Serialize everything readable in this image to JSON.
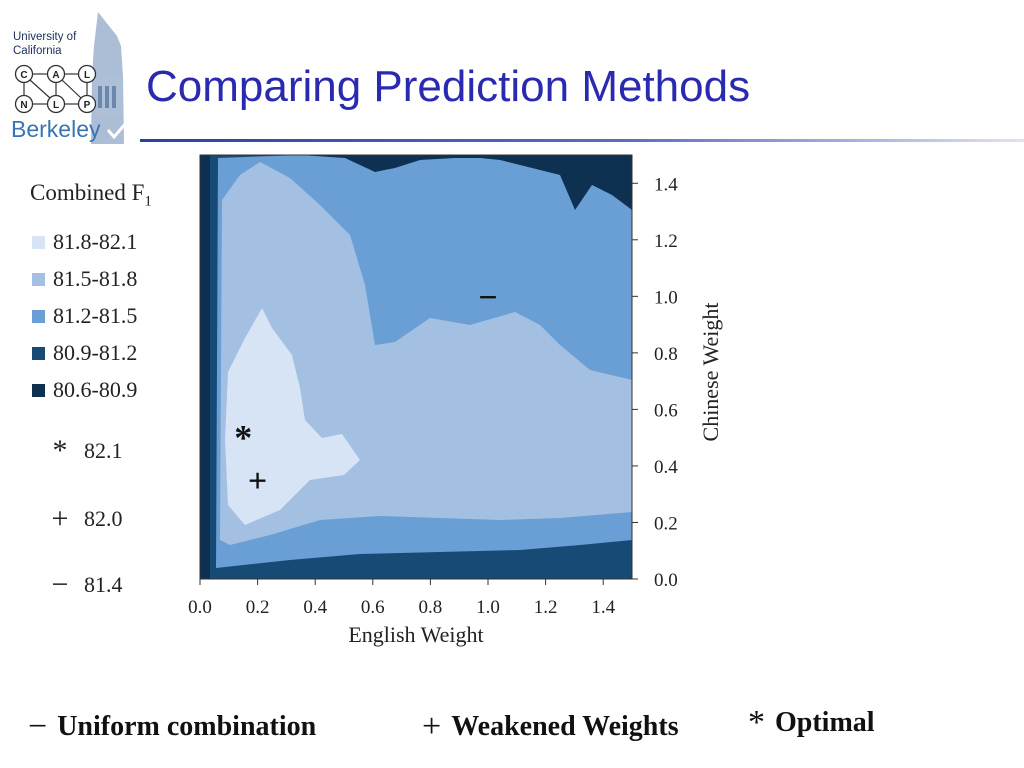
{
  "logo": {
    "line1": "University of",
    "line2": "California",
    "letters": [
      "C",
      "A",
      "L",
      "N",
      "L",
      "P"
    ],
    "word": "Berkeley"
  },
  "slide": {
    "title": "Comparing Prediction Methods"
  },
  "colors": {
    "band1": "#d6e4f5",
    "band2": "#a3c0e3",
    "band3": "#6a9fd6",
    "band4": "#174a74",
    "band5": "#0e3152",
    "accent_title": "#2a2ab0"
  },
  "chart_data": {
    "type": "heatmap",
    "xlabel": "English Weight",
    "ylabel": "Chinese Weight",
    "xlim": [
      0.0,
      1.5
    ],
    "ylim": [
      0.0,
      1.5
    ],
    "xticks": [
      "0.0",
      "0.2",
      "0.4",
      "0.6",
      "0.8",
      "1.0",
      "1.2",
      "1.4"
    ],
    "yticks": [
      "0.0",
      "0.2",
      "0.4",
      "0.6",
      "0.8",
      "1.0",
      "1.2",
      "1.4"
    ],
    "legend_title": "Combined F",
    "legend_title_sub": "1",
    "bands": [
      {
        "label": "81.8-82.1",
        "color": "#d6e4f5"
      },
      {
        "label": "81.5-81.8",
        "color": "#a3c0e3"
      },
      {
        "label": "81.2-81.5",
        "color": "#6a9fd6"
      },
      {
        "label": "80.9-81.2",
        "color": "#174a74"
      },
      {
        "label": "80.6-80.9",
        "color": "#0e3152"
      }
    ],
    "markers": [
      {
        "symbol": "*",
        "value": "82.1",
        "name": "Optimal",
        "x": 0.15,
        "y": 0.5
      },
      {
        "symbol": "+",
        "value": "82.0",
        "name": "Weakened Weights",
        "x": 0.2,
        "y": 0.35
      },
      {
        "symbol": "−",
        "value": "81.4",
        "name": "Uniform combination",
        "x": 1.0,
        "y": 1.0
      }
    ]
  },
  "footer": {
    "uniform": {
      "symbol": "−",
      "label": "Uniform combination"
    },
    "weakened": {
      "symbol": "+",
      "label": "Weakened Weights"
    },
    "optimal": {
      "symbol": "*",
      "label": "Optimal"
    }
  }
}
